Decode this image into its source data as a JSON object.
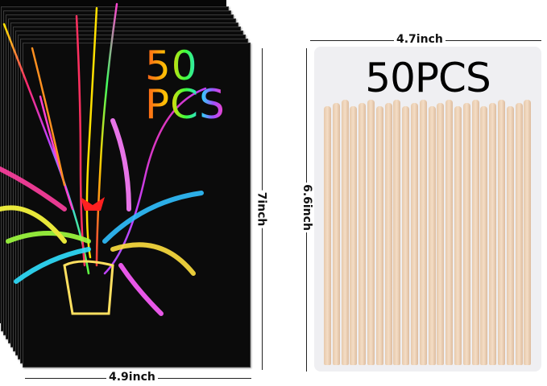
{
  "left_product": {
    "title": "50 PCS",
    "title_line1": "50",
    "title_line2": "PCS",
    "height_label": "7inch",
    "width_label": "4.9inch",
    "sheet_color": "#070707"
  },
  "right_product": {
    "title": "50PCS",
    "width_label": "4.7inch",
    "height_label": "6.6inch",
    "box_color": "#efeff2",
    "stick_color": "#eed3b8"
  }
}
